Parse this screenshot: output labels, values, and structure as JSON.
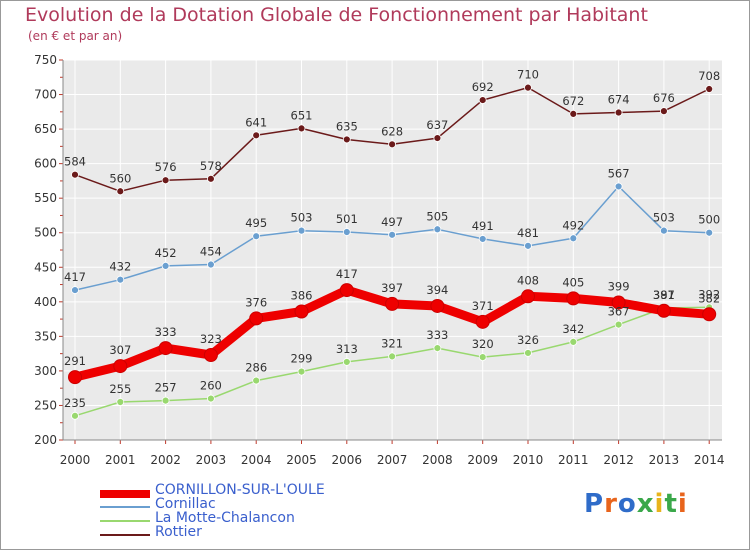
{
  "title": "Evolution de la Dotation Globale de Fonctionnement par Habitant",
  "subtitle": "(en € et par an)",
  "logo": {
    "text": "Proxiti",
    "colors": [
      "#2f6cc9",
      "#e8641c",
      "#2f6cc9",
      "#3aa84a",
      "#e8b41c",
      "#3aa84a",
      "#e8641c"
    ]
  },
  "chart_data": {
    "type": "line",
    "title": "Evolution de la Dotation Globale de Fonctionnement par Habitant",
    "subtitle": "(en € et par an)",
    "xlabel": "",
    "ylabel": "",
    "ylim": [
      200,
      750
    ],
    "yticks": [
      "200",
      "250",
      "300",
      "350",
      "400",
      "450",
      "500",
      "550",
      "600",
      "650",
      "700",
      "750"
    ],
    "grid": true,
    "categories": [
      "2000",
      "2001",
      "2002",
      "2003",
      "2004",
      "2005",
      "2006",
      "2007",
      "2008",
      "2009",
      "2010",
      "2011",
      "2012",
      "2013",
      "2014"
    ],
    "series": [
      {
        "name": "CORNILLON-SUR-L'OULE",
        "color": "#ee0000",
        "width": 9,
        "values": [
          291,
          307,
          333,
          323,
          376,
          386,
          417,
          397,
          394,
          371,
          408,
          405,
          399,
          387,
          382
        ]
      },
      {
        "name": "Cornillac",
        "color": "#6a9fd0",
        "width": 1.5,
        "values": [
          417,
          432,
          452,
          454,
          495,
          503,
          501,
          497,
          505,
          491,
          481,
          492,
          567,
          503,
          500
        ]
      },
      {
        "name": "La Motte-Chalancon",
        "color": "#99d86f",
        "width": 1.5,
        "values": [
          235,
          255,
          257,
          260,
          286,
          299,
          313,
          321,
          333,
          320,
          326,
          342,
          367,
          391,
          392
        ]
      },
      {
        "name": "Rottier",
        "color": "#6b1a1a",
        "width": 1.5,
        "values": [
          584,
          560,
          576,
          578,
          641,
          651,
          635,
          628,
          637,
          692,
          710,
          672,
          674,
          676,
          708
        ]
      }
    ]
  }
}
